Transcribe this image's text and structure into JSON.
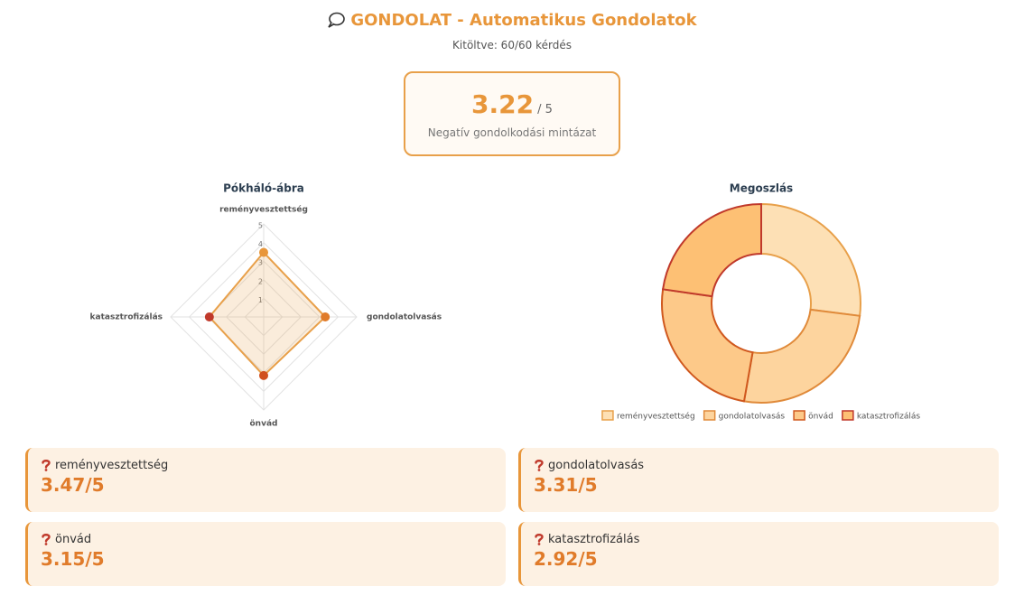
{
  "header": {
    "title": "GONDOLAT - Automatikus Gondolatok",
    "subtitle": "Kitöltve: 60/60 kérdés"
  },
  "score": {
    "value": "3.22",
    "max": "/ 5",
    "label": "Negatív gondolkodási mintázat"
  },
  "chart_data": [
    {
      "type": "radar",
      "title": "Pókháló-ábra",
      "categories": [
        "reményvesztettség",
        "gondolatolvasás",
        "önvád",
        "katasztrofizálás"
      ],
      "series": [
        {
          "color": "#e8a04a",
          "values": [
            3.47,
            3.31,
            3.15,
            2.92
          ]
        }
      ],
      "point_colors": [
        "#e8963a",
        "#e07b2a",
        "#d0501e",
        "#c0392b"
      ],
      "ylim": [
        0,
        5
      ],
      "yticks": [
        1,
        2,
        3,
        4,
        5
      ],
      "grid": true
    },
    {
      "type": "doughnut",
      "title": "Megoszlás",
      "categories": [
        "reményvesztettség",
        "gondolatolvasás",
        "önvád",
        "katasztrofizálás"
      ],
      "values": [
        3.47,
        3.31,
        3.15,
        2.92
      ],
      "colors": [
        "#fde0b5",
        "#fdd49e",
        "#fdc989",
        "#fdc074"
      ],
      "border_colors": [
        "#e8a04a",
        "#e08a3a",
        "#d0581e",
        "#c0392b"
      ],
      "legend": "bottom"
    }
  ],
  "cards": [
    {
      "label": "reményvesztettség",
      "value": "3.47/5"
    },
    {
      "label": "gondolatolvasás",
      "value": "3.31/5"
    },
    {
      "label": "önvád",
      "value": "3.15/5"
    },
    {
      "label": "katasztrofizálás",
      "value": "2.92/5"
    }
  ]
}
